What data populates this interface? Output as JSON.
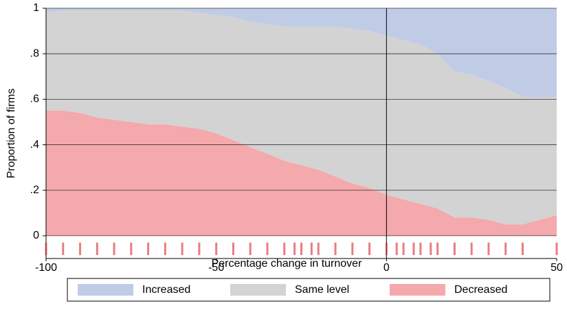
{
  "chart_data": {
    "type": "stacked_area",
    "x_label": "Percentage change in turnover",
    "y_label": "Proportion of firms",
    "x": [
      -100,
      -95,
      -90,
      -85,
      -80,
      -75,
      -70,
      -65,
      -60,
      -55,
      -50,
      -45,
      -40,
      -35,
      -30,
      -25,
      -20,
      -15,
      -10,
      -5,
      0,
      5,
      10,
      15,
      20,
      25,
      30,
      35,
      40,
      45,
      50
    ],
    "series": [
      {
        "name": "Decreased",
        "color": "#f4a9ad",
        "values": [
          0.55,
          0.55,
          0.54,
          0.52,
          0.51,
          0.5,
          0.49,
          0.49,
          0.48,
          0.47,
          0.45,
          0.42,
          0.39,
          0.36,
          0.33,
          0.31,
          0.29,
          0.26,
          0.23,
          0.21,
          0.18,
          0.16,
          0.14,
          0.12,
          0.08,
          0.08,
          0.07,
          0.05,
          0.05,
          0.07,
          0.09
        ]
      },
      {
        "name": "Same level",
        "color": "#d3d3d3",
        "values": [
          0.43,
          0.44,
          0.45,
          0.47,
          0.48,
          0.49,
          0.5,
          0.5,
          0.51,
          0.51,
          0.52,
          0.54,
          0.55,
          0.57,
          0.59,
          0.61,
          0.63,
          0.66,
          0.68,
          0.69,
          0.7,
          0.7,
          0.7,
          0.68,
          0.64,
          0.63,
          0.61,
          0.6,
          0.56,
          0.54,
          0.52
        ]
      },
      {
        "name": "Increased",
        "color": "#c0cce6",
        "values": [
          0.02,
          0.01,
          0.01,
          0.01,
          0.01,
          0.01,
          0.01,
          0.01,
          0.01,
          0.02,
          0.03,
          0.04,
          0.06,
          0.07,
          0.08,
          0.08,
          0.08,
          0.08,
          0.09,
          0.1,
          0.12,
          0.14,
          0.16,
          0.2,
          0.28,
          0.29,
          0.32,
          0.35,
          0.39,
          0.39,
          0.39
        ]
      }
    ],
    "legend_order": [
      2,
      1,
      0
    ],
    "rug_x": [
      -100,
      -95,
      -90,
      -85,
      -80,
      -75,
      -70,
      -65,
      -60,
      -55,
      -50,
      -45,
      -40,
      -35,
      -30,
      -27,
      -25,
      -22,
      -20,
      -15,
      -10,
      -5,
      0,
      3,
      5,
      8,
      10,
      13,
      15,
      20,
      25,
      30,
      35,
      40,
      50
    ],
    "rug_color": "#d9262b",
    "xlim": [
      -100,
      50
    ],
    "ylim": [
      -0.1,
      1
    ],
    "xticks": [
      -100,
      -50,
      0,
      50
    ],
    "yticks": [
      0,
      {
        "value": 0.2,
        "label": ".2"
      },
      {
        "value": 0.4,
        "label": ".4"
      },
      {
        "value": 0.6,
        "label": ".6"
      },
      {
        "value": 0.8,
        "label": ".8"
      },
      1
    ],
    "grid": true,
    "legend": "bottom"
  }
}
